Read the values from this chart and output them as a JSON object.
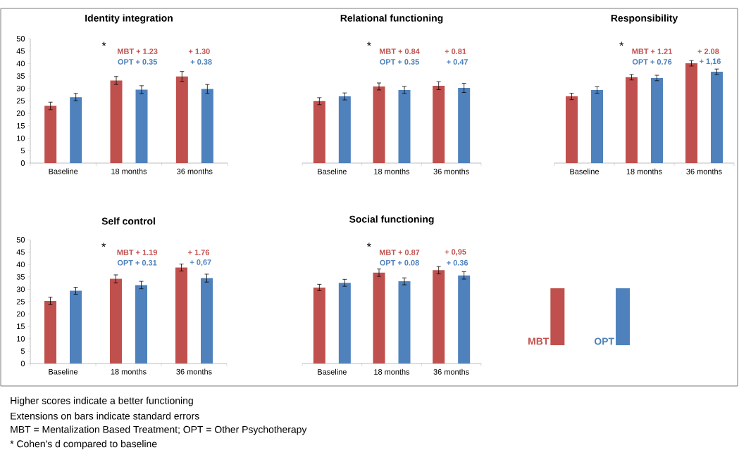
{
  "chart_data": [
    {
      "type": "bar",
      "title": "Identity integration",
      "categories": [
        "Baseline",
        "18 months",
        "36 months"
      ],
      "ylim": [
        0,
        50
      ],
      "yticks": [
        0,
        5,
        10,
        15,
        20,
        25,
        30,
        35,
        40,
        45,
        50
      ],
      "series": [
        {
          "color": "#c0504d",
          "values": [
            23,
            33.2,
            34.8
          ],
          "errors": [
            1.5,
            1.6,
            2
          ]
        },
        {
          "color": "#4f81bd",
          "values": [
            26.5,
            29.5,
            29.8
          ],
          "errors": [
            1.5,
            1.6,
            1.8
          ]
        }
      ],
      "annotations": [
        "*",
        "MBT + 1.23",
        "OPT + 0.35",
        "+ 1.30",
        "+ 0.38"
      ]
    },
    {
      "type": "bar",
      "title": "Relational functioning",
      "categories": [
        "Baseline",
        "18 months",
        "36 months"
      ],
      "ylim": [
        0,
        50
      ],
      "tick_labels": "x",
      "series": [
        {
          "color": "#c0504d",
          "values": [
            24.9,
            30.8,
            31.1
          ],
          "errors": [
            1.4,
            1.4,
            1.6
          ]
        },
        {
          "color": "#4f81bd",
          "values": [
            26.8,
            29.4,
            30.2
          ],
          "errors": [
            1.4,
            1.4,
            1.8
          ]
        }
      ],
      "annotations": [
        "*",
        "MBT + 0.84",
        "OPT + 0.35",
        "+ 0.81",
        "+ 0.47"
      ]
    },
    {
      "type": "bar",
      "title": "Responsibility",
      "categories": [
        "Baseline",
        "18 months",
        "36 months"
      ],
      "ylim": [
        0,
        50
      ],
      "tick_labels": "x",
      "series": [
        {
          "color": "#c0504d",
          "values": [
            26.8,
            34.5,
            40.1
          ],
          "errors": [
            1.3,
            1.1,
            1.1
          ]
        },
        {
          "color": "#4f81bd",
          "values": [
            29.4,
            34.2,
            36.7
          ],
          "errors": [
            1.3,
            1.1,
            1.1
          ]
        }
      ],
      "annotations": [
        "*",
        "MBT + 1.21",
        "OPT + 0.76",
        "+ 2.08",
        "+ 1,16"
      ]
    },
    {
      "type": "bar",
      "title": "Self control",
      "categories": [
        "Baseline",
        "18 months",
        "36 months"
      ],
      "ylim": [
        0,
        50
      ],
      "yticks": [
        0,
        5,
        10,
        15,
        20,
        25,
        30,
        35,
        40,
        45,
        50
      ],
      "series": [
        {
          "color": "#c0504d",
          "values": [
            25.3,
            34.2,
            38.8
          ],
          "errors": [
            1.5,
            1.6,
            1.4
          ]
        },
        {
          "color": "#4f81bd",
          "values": [
            29.4,
            31.7,
            34.5
          ],
          "errors": [
            1.4,
            1.5,
            1.6
          ]
        }
      ],
      "annotations": [
        "*",
        "MBT + 1.19",
        "OPT + 0.31",
        "+ 1.76",
        "+ 0,67"
      ]
    },
    {
      "type": "bar",
      "title": "Social functioning",
      "categories": [
        "Baseline",
        "18 months",
        "36 months"
      ],
      "ylim": [
        0,
        50
      ],
      "tick_labels": "x",
      "legend": "right",
      "series": [
        {
          "name": "MBT",
          "color": "#c0504d",
          "values": [
            30.7,
            36.7,
            37.7
          ],
          "errors": [
            1.3,
            1.5,
            1.5
          ]
        },
        {
          "name": "OPT",
          "color": "#4f81bd",
          "values": [
            32.6,
            33.2,
            35.6
          ],
          "errors": [
            1.4,
            1.4,
            1.5
          ]
        }
      ],
      "annotations": [
        "*",
        "MBT + 0.87",
        "OPT + 0.08",
        "+ 0,95",
        "+ 0.36"
      ]
    },
    {
      "type": "other",
      "annotations": [
        "Higher scores indicate a better functioning",
        "Extensions on bars indicate standard errors",
        "MBT = Mentalization Based Treatment; OPT = Other Psychotherapy",
        "* Cohen's d compared to baseline"
      ]
    }
  ]
}
